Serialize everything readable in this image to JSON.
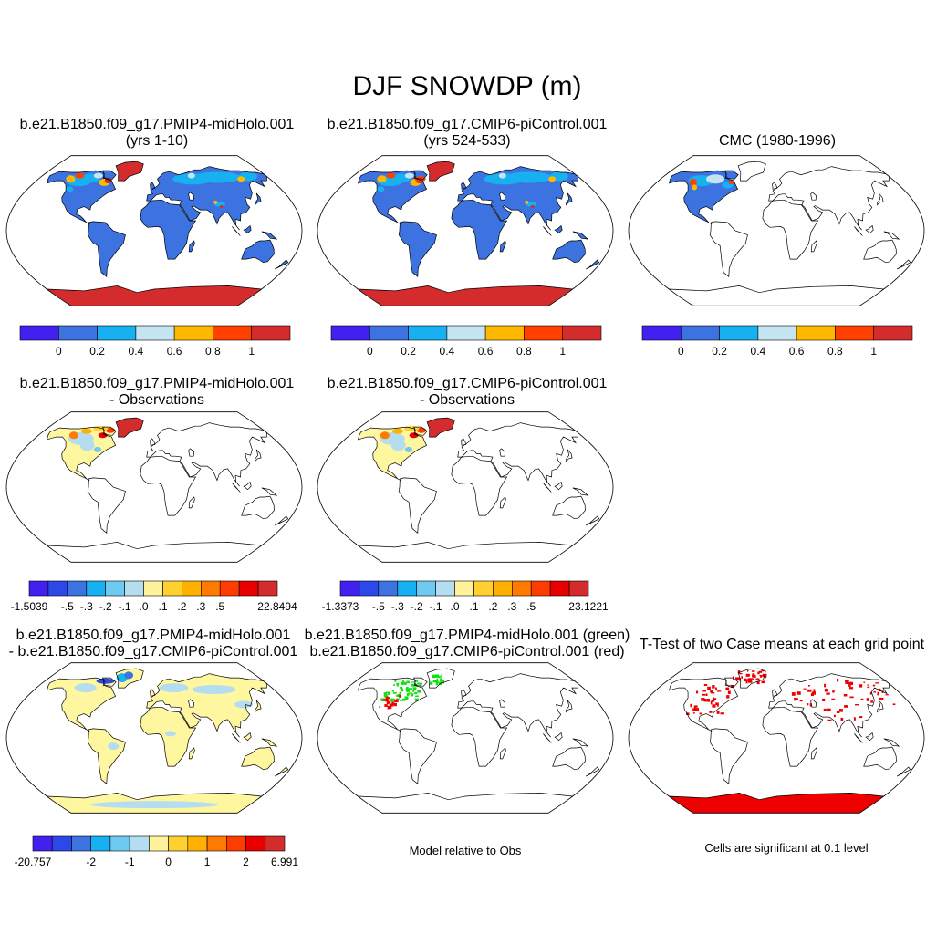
{
  "title": "DJF SNOWDP (m)",
  "colors": {
    "ocean": "#ffffff",
    "land_blue": "#3d73e0",
    "ice_red": "#d42c2c",
    "obs_diff_land": "#fff6a0",
    "casediff_land": "#fff6a0",
    "green": "#13e013",
    "red": "#ee0000"
  },
  "panels": {
    "p1": {
      "line1": "b.e21.B1850.f09_g17.PMIP4-midHolo.001",
      "line2": "(yrs 1-10)"
    },
    "p2": {
      "line1": "b.e21.B1850.f09_g17.CMIP6-piControl.001",
      "line2": "(yrs 524-533)"
    },
    "p3": {
      "line1": "CMC (1980-1996)",
      "line2": ""
    },
    "p4": {
      "line1": "b.e21.B1850.f09_g17.PMIP4-midHolo.001",
      "line2": "- Observations"
    },
    "p5": {
      "line1": "b.e21.B1850.f09_g17.CMIP6-piControl.001",
      "line2": "- Observations"
    },
    "p7": {
      "line1": "b.e21.B1850.f09_g17.PMIP4-midHolo.001",
      "line2": "- b.e21.B1850.f09_g17.CMIP6-piControl.001"
    },
    "p8": {
      "line1": "b.e21.B1850.f09_g17.PMIP4-midHolo.001 (green)",
      "line2": "b.e21.B1850.f09_g17.CMIP6-piControl.001 (red)"
    },
    "p9": {
      "line1": "T-Test of two Case means at each grid point",
      "line2": ""
    }
  },
  "colorbars": {
    "abs": {
      "colors": [
        "#4220f0",
        "#3d73e0",
        "#17b0f0",
        "#c4e4f2",
        "#ffb800",
        "#ff4000",
        "#d42c2c"
      ],
      "labels": [
        "0",
        "0.2",
        "0.4",
        "0.6",
        "0.8",
        "1"
      ]
    },
    "diff1": {
      "colors": [
        "#4220f0",
        "#2d48e8",
        "#3d73e0",
        "#17b0f0",
        "#6ecaf0",
        "#b4def0",
        "#fff29c",
        "#ffd030",
        "#ffb000",
        "#ff7a00",
        "#ff3c00",
        "#e80000",
        "#d42c2c"
      ],
      "labels": [
        "-1.5039",
        "-.5",
        "-.3",
        "-.2",
        "-.1",
        ".0",
        ".1",
        ".2",
        ".3",
        ".5",
        "22.8494"
      ]
    },
    "diff2": {
      "colors": [
        "#4220f0",
        "#2d48e8",
        "#3d73e0",
        "#17b0f0",
        "#6ecaf0",
        "#b4def0",
        "#fff29c",
        "#ffd030",
        "#ffb000",
        "#ff7a00",
        "#ff3c00",
        "#e80000",
        "#d42c2c"
      ],
      "labels": [
        "-1.3373",
        "-.5",
        "-.3",
        "-.2",
        "-.1",
        ".0",
        ".1",
        ".2",
        ".3",
        ".5",
        "23.1221"
      ]
    },
    "diff3": {
      "colors": [
        "#4220f0",
        "#2d48e8",
        "#3d73e0",
        "#17b0f0",
        "#6ecaf0",
        "#b4def0",
        "#fff29c",
        "#ffd030",
        "#ffb000",
        "#ff7a00",
        "#ff3c00",
        "#e80000",
        "#d42c2c"
      ],
      "labels": [
        "-20.757",
        "-2",
        "-1",
        "0",
        "1",
        "2",
        "6.991"
      ]
    }
  },
  "notes": {
    "model_rel": "Model relative to Obs",
    "sig": "Cells are significant at 0.1 level"
  }
}
